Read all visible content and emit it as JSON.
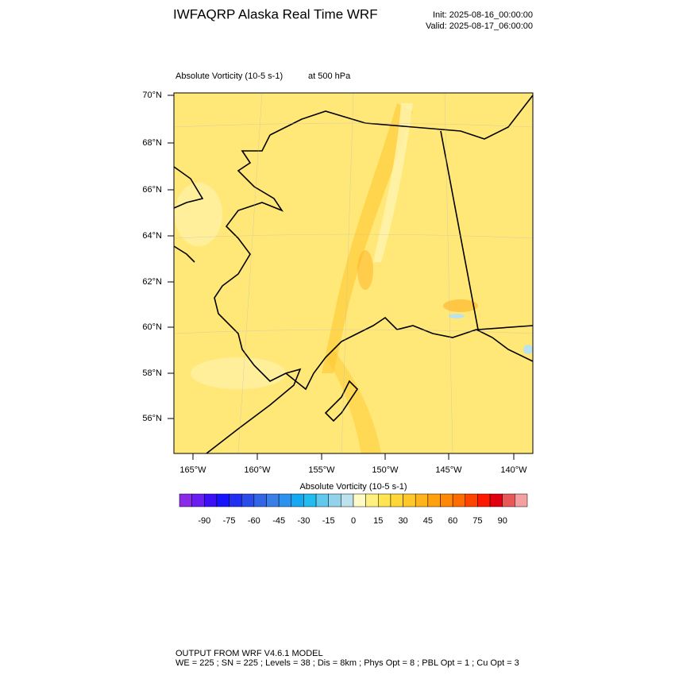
{
  "header": {
    "title": "IWFAQRP Alaska Real Time WRF",
    "init": "Init: 2025-08-16_00:00:00",
    "valid": "Valid: 2025-08-17_06:00:00"
  },
  "plot": {
    "field": "Absolute Vorticity   (10-5 s-1)",
    "level": "at   500 hPa",
    "lat_labels": [
      "70°N",
      "68°N",
      "66°N",
      "64°N",
      "62°N",
      "60°N",
      "58°N",
      "56°N"
    ],
    "lon_labels": [
      "165°W",
      "160°W",
      "155°W",
      "150°W",
      "145°W",
      "140°W"
    ]
  },
  "colorbar": {
    "title": "Absolute Vorticity  (10-5 s-1)",
    "ticks": [
      -90,
      -75,
      -60,
      -45,
      -30,
      -15,
      0,
      15,
      30,
      45,
      60,
      75,
      90
    ],
    "colors": [
      "#8a2be8",
      "#6a1ff0",
      "#3c10f4",
      "#1414ff",
      "#2030f0",
      "#2a4ce8",
      "#3366e6",
      "#3a7ee8",
      "#2c92ee",
      "#16a8f0",
      "#22bcf0",
      "#62c8ec",
      "#92d2ea",
      "#bce2ee",
      "#fffbc8",
      "#fff080",
      "#ffe650",
      "#ffd838",
      "#ffc828",
      "#ffb41c",
      "#ffa010",
      "#ff8808",
      "#ff6c00",
      "#ff4400",
      "#ff1800",
      "#e00010",
      "#e85858",
      "#f4a0a0"
    ]
  },
  "footer": {
    "line1": "OUTPUT FROM WRF V4.6.1 MODEL",
    "line2": "WE = 225 ; SN = 225 ; Levels = 38 ; Dis = 8km ; Phys Opt = 8 ; PBL Opt = 1 ; Cu Opt = 3"
  }
}
